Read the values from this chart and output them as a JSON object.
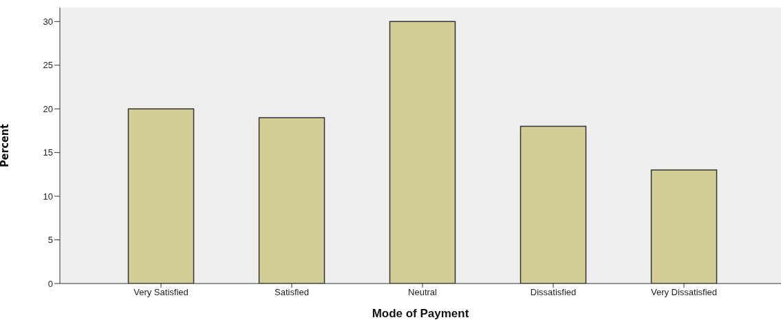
{
  "chart_data": {
    "type": "bar",
    "xlabel": "Mode of Payment",
    "ylabel": "Percent",
    "categories": [
      "Very Satisfied",
      "Satisfied",
      "Neutral",
      "Dissatisfied",
      "Very Dissatisfied"
    ],
    "values": [
      20,
      19,
      30,
      18,
      13
    ],
    "color": "#d3cd96",
    "ylim": [
      0,
      31.6
    ],
    "yticks": [
      0,
      5,
      10,
      15,
      20,
      25,
      30
    ],
    "grid": false
  }
}
